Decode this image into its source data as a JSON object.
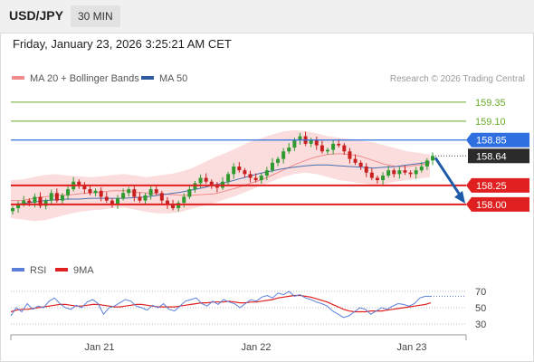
{
  "header": {
    "pair": "USD/JPY",
    "timeframe": "30 MIN"
  },
  "datetime": "Friday, January 23, 2026 3:25:21 AM CET",
  "credit": "Research © 2026 Trading Central",
  "legend_main": [
    {
      "label": "MA 20 + Bollinger Bands",
      "color": "#f08c8c"
    },
    {
      "label": "MA 50",
      "color": "#2e5c9e"
    }
  ],
  "legend_rsi": [
    {
      "label": "RSI",
      "color": "#5b7fd8"
    },
    {
      "label": "9MA",
      "color": "#e02020"
    }
  ],
  "colors": {
    "resistance": "#2f6fe0",
    "support": "#e02020",
    "target": "#6aaa2a",
    "arrow": "#1e5aa8",
    "bull": "#2f9a2f",
    "bear": "#c82020"
  },
  "chart_data": [
    {
      "type": "candlestick",
      "x_ticks": [
        "Jan 21",
        "Jan 22",
        "Jan 23"
      ],
      "ylim": [
        157.4,
        159.6
      ],
      "levels": [
        {
          "value": "159.35",
          "kind": "target"
        },
        {
          "value": "159.10",
          "kind": "target"
        },
        {
          "value": "158.85",
          "kind": "resistance"
        },
        {
          "value": "158.25",
          "kind": "support"
        },
        {
          "value": "158.00",
          "kind": "support"
        }
      ],
      "last_price": "158.64",
      "closes": [
        157.95,
        158.0,
        158.05,
        158.02,
        158.1,
        157.98,
        158.05,
        158.15,
        158.05,
        158.12,
        158.2,
        158.3,
        158.25,
        158.2,
        158.15,
        158.18,
        158.1,
        158.05,
        158.0,
        158.08,
        158.15,
        158.2,
        158.1,
        158.05,
        158.12,
        158.2,
        158.15,
        158.05,
        158.0,
        157.95,
        158.02,
        158.1,
        158.2,
        158.28,
        158.35,
        158.3,
        158.25,
        158.22,
        158.3,
        158.4,
        158.5,
        158.45,
        158.4,
        158.35,
        158.32,
        158.38,
        158.45,
        158.55,
        158.6,
        158.7,
        158.75,
        158.85,
        158.9,
        158.8,
        158.85,
        158.78,
        158.7,
        158.72,
        158.8,
        158.78,
        158.7,
        158.6,
        158.55,
        158.5,
        158.42,
        158.35,
        158.32,
        158.38,
        158.45,
        158.4,
        158.45,
        158.42,
        158.4,
        158.45,
        158.5,
        158.58,
        158.64
      ],
      "ma20": [
        158.05,
        158.05,
        158.08,
        158.1,
        158.12,
        158.12,
        158.14,
        158.15,
        158.16,
        158.18,
        158.18,
        158.16,
        158.15,
        158.14,
        158.13,
        158.12,
        158.12,
        158.13,
        158.14,
        158.18,
        158.22,
        158.27,
        158.32,
        158.38,
        158.45,
        158.52,
        158.58,
        158.63,
        158.66,
        158.67,
        158.66,
        158.63,
        158.58,
        158.53,
        158.5,
        158.5,
        158.52,
        158.54
      ],
      "ma50": [
        158.0,
        158.01,
        158.03,
        158.05,
        158.06,
        158.07,
        158.07,
        158.08,
        158.08,
        158.08,
        158.08,
        158.09,
        158.1,
        158.12,
        158.14,
        158.16,
        158.19,
        158.22,
        158.26,
        158.29,
        158.33,
        158.37,
        158.41,
        158.44,
        158.47,
        158.49,
        158.51,
        158.52,
        158.52,
        158.51,
        158.5,
        158.49,
        158.48,
        158.49,
        158.5,
        158.52,
        158.54,
        158.56
      ],
      "band_upper": [
        158.32,
        158.33,
        158.36,
        158.39,
        158.4,
        158.38,
        158.37,
        158.36,
        158.37,
        158.39,
        158.4,
        158.38,
        158.36,
        158.38,
        158.4,
        158.43,
        158.48,
        158.55,
        158.62,
        158.68,
        158.75,
        158.82,
        158.87,
        158.92,
        158.96,
        158.98,
        158.97,
        158.94,
        158.9,
        158.88,
        158.86,
        158.84,
        158.82,
        158.78,
        158.74,
        158.7,
        158.68,
        158.66
      ],
      "band_lower": [
        157.82,
        157.8,
        157.78,
        157.79,
        157.83,
        157.87,
        157.9,
        157.92,
        157.93,
        157.95,
        157.96,
        157.93,
        157.9,
        157.88,
        157.88,
        157.9,
        157.94,
        157.98,
        158.02,
        158.07,
        158.12,
        158.18,
        158.24,
        158.3,
        158.36,
        158.4,
        158.42,
        158.4,
        158.36,
        158.32,
        158.3,
        158.28,
        158.26,
        158.27,
        158.3,
        158.32,
        158.34,
        158.36
      ],
      "forecast": {
        "from": 158.64,
        "to": 158.0
      }
    },
    {
      "type": "line",
      "title": "RSI",
      "y_ticks": [
        "70",
        "50",
        "30"
      ],
      "ylim": [
        20,
        80
      ],
      "series": [
        {
          "name": "RSI",
          "values": [
            40,
            50,
            45,
            55,
            48,
            52,
            50,
            58,
            62,
            55,
            50,
            48,
            53,
            50,
            57,
            60,
            55,
            42,
            50,
            52,
            56,
            60,
            58,
            52,
            50,
            47,
            53,
            50,
            55,
            48,
            46,
            52,
            58,
            60,
            62,
            55,
            52,
            58,
            54,
            60,
            57,
            55,
            50,
            55,
            60,
            58,
            63,
            65,
            62,
            68,
            66,
            70,
            64,
            66,
            62,
            60,
            57,
            55,
            52,
            46,
            42,
            38,
            40,
            45,
            50,
            48,
            42,
            46,
            50,
            48,
            52,
            55,
            54,
            52,
            55,
            62,
            64,
            64
          ]
        },
        {
          "name": "9MA",
          "values": [
            45,
            47,
            48,
            48,
            49,
            50,
            51,
            52,
            53,
            54,
            54,
            53,
            52,
            52,
            53,
            54,
            54,
            53,
            52,
            51,
            51,
            52,
            53,
            54,
            54,
            53,
            52,
            51,
            51,
            51,
            51,
            52,
            53,
            54,
            55,
            56,
            56,
            57,
            57,
            57,
            58,
            57,
            56,
            56,
            57,
            57,
            58,
            59,
            60,
            62,
            63,
            64,
            65,
            65,
            64,
            63,
            61,
            59,
            57,
            54,
            51,
            48,
            46,
            45,
            45,
            45,
            46,
            46,
            46,
            47,
            48,
            49,
            50,
            51,
            52,
            53,
            54,
            56
          ]
        }
      ]
    }
  ]
}
